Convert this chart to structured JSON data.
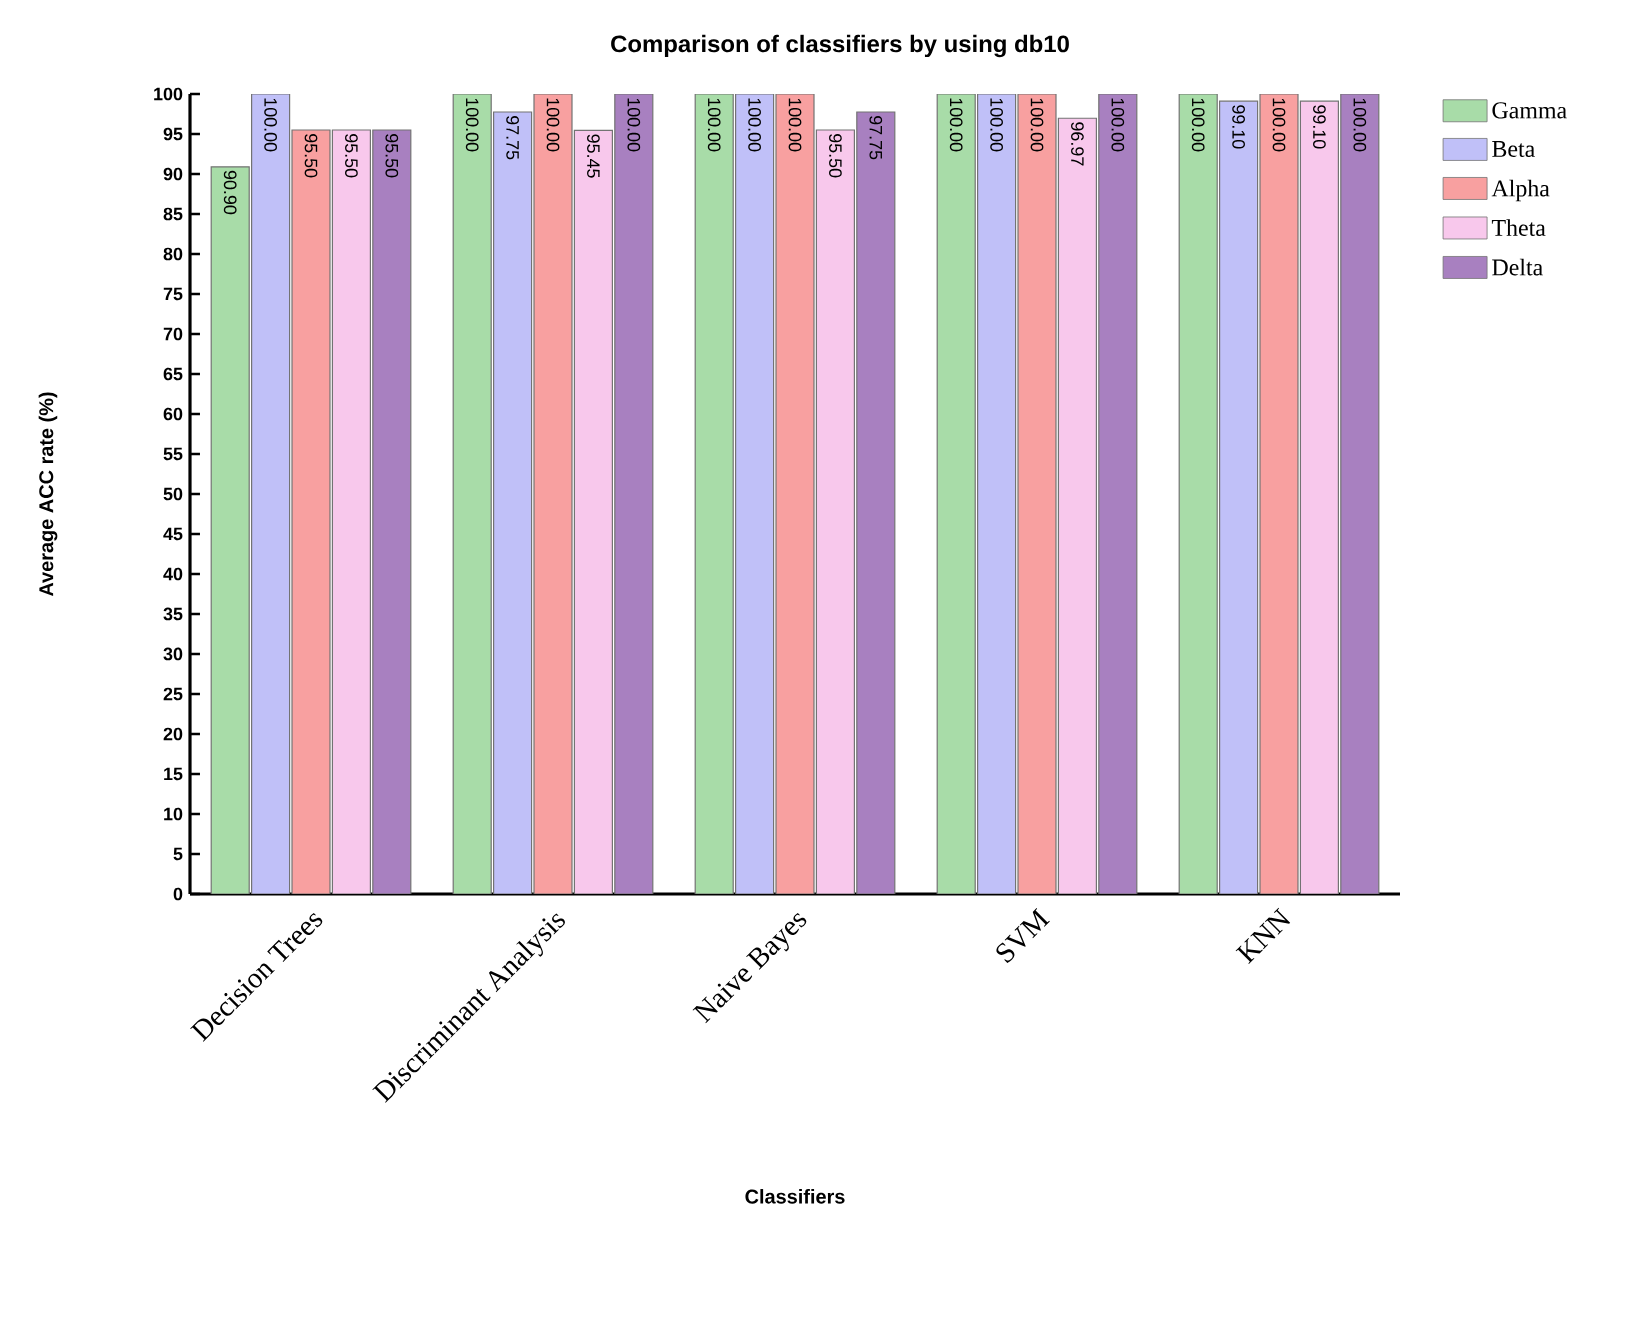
{
  "chart_data": {
    "type": "bar",
    "title": "Comparison of classifiers by using db10",
    "xlabel": "Classifiers",
    "ylabel": "Average ACC rate (%)",
    "categories": [
      "Decision Trees",
      "Discriminant Analysis",
      "Naive Bayes",
      "SVM",
      "KNN"
    ],
    "series": [
      {
        "name": "Gamma",
        "color": "#a8dca8",
        "values": [
          90.9,
          100,
          100,
          100,
          100
        ],
        "value_labels": [
          "90.90",
          "100.00",
          "100.00",
          "100.00",
          "100.00"
        ]
      },
      {
        "name": "Beta",
        "color": "#c0c0f8",
        "values": [
          100,
          97.75,
          100,
          100,
          99.1
        ],
        "value_labels": [
          "100.00",
          "97.75",
          "100.00",
          "100.00",
          "99.10"
        ]
      },
      {
        "name": "Alpha",
        "color": "#f8a0a0",
        "values": [
          95.5,
          100,
          100,
          100,
          100
        ],
        "value_labels": [
          "95.50",
          "100.00",
          "100.00",
          "100.00",
          "100.00"
        ]
      },
      {
        "name": "Theta",
        "color": "#f8c8ec",
        "values": [
          95.5,
          95.45,
          95.5,
          96.97,
          99.1
        ],
        "value_labels": [
          "95.50",
          "95.45",
          "95.50",
          "96.97",
          "99.10"
        ]
      },
      {
        "name": "Delta",
        "color": "#a880c0",
        "values": [
          95.5,
          100,
          97.75,
          100,
          100
        ],
        "value_labels": [
          "95.50",
          "100.00",
          "97.75",
          "100.00",
          "100.00"
        ]
      }
    ],
    "ylim": [
      0,
      100
    ],
    "yticks": [
      0,
      5,
      10,
      15,
      20,
      25,
      30,
      35,
      40,
      45,
      50,
      55,
      60,
      65,
      70,
      75,
      80,
      85,
      90,
      95,
      100
    ],
    "grid": false,
    "legend": "top right"
  }
}
